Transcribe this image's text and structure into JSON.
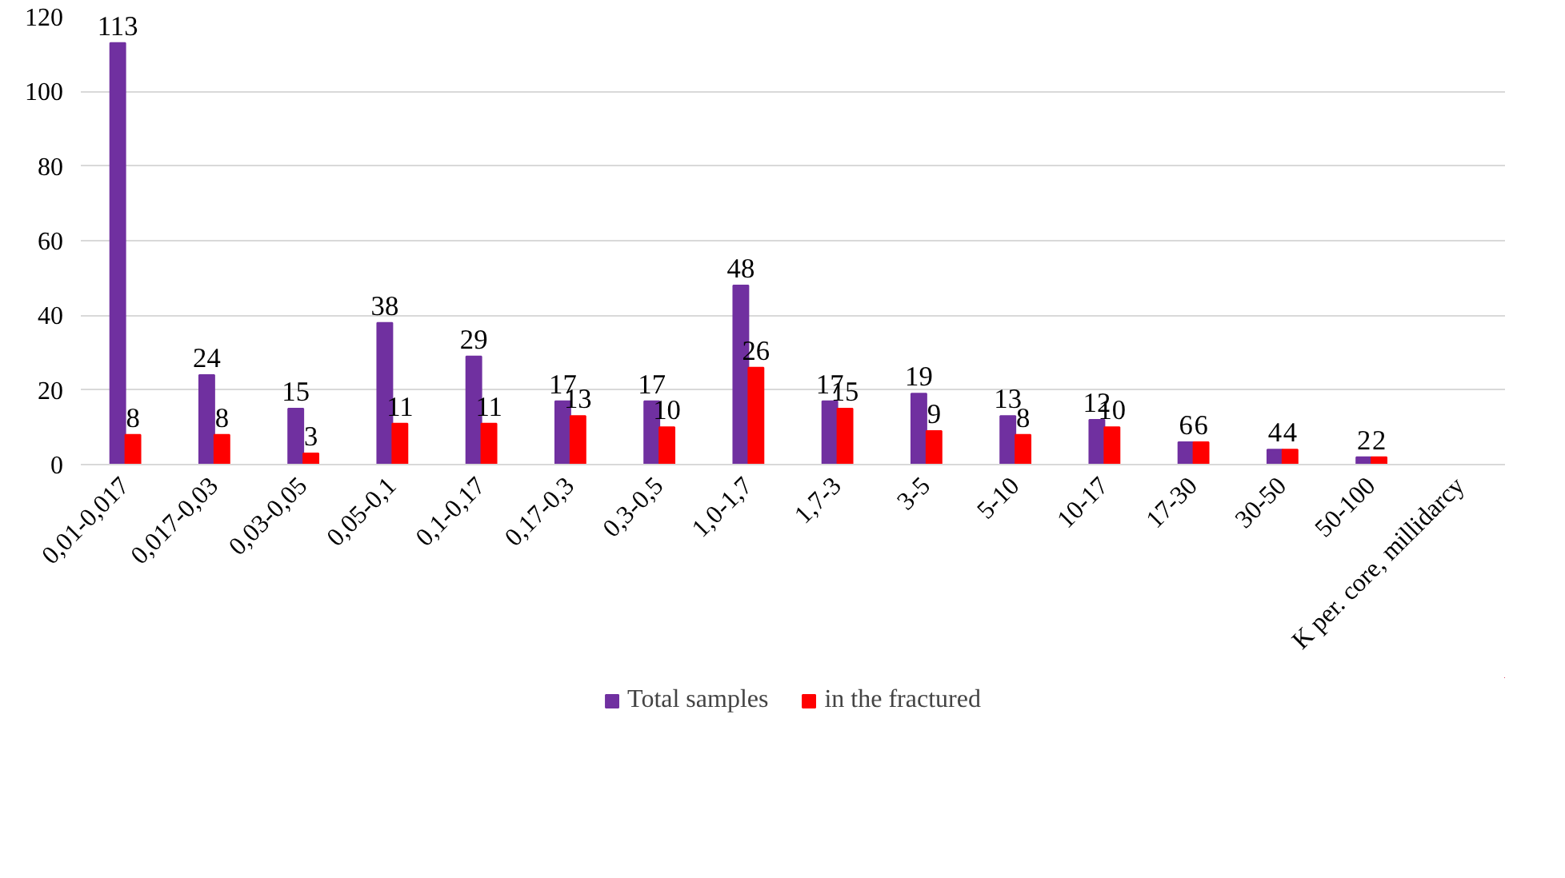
{
  "chart_data": {
    "type": "bar",
    "categories": [
      "0,01-0,017",
      "0,017-0,03",
      "0,03-0,05",
      "0,05-0,1",
      "0,1-0,17",
      "0,17-0,3",
      "0,3-0,5",
      "1,0-1,7",
      "1,7-3",
      "3-5",
      "5-10",
      "10-17",
      "17-30",
      "30-50",
      "50-100",
      "K per. core, millidarcy"
    ],
    "series": [
      {
        "name": "Total samples",
        "color": "#7030a0",
        "values": [
          113,
          24,
          15,
          38,
          29,
          17,
          17,
          48,
          17,
          19,
          13,
          12,
          6,
          4,
          2,
          null
        ]
      },
      {
        "name": "in the fractured",
        "color": "#ff0000",
        "values": [
          8,
          8,
          3,
          11,
          11,
          13,
          10,
          26,
          15,
          9,
          8,
          10,
          6,
          4,
          2,
          null
        ]
      }
    ],
    "ylim": [
      0,
      120
    ],
    "yticks": [
      0,
      20,
      40,
      60,
      80,
      100,
      120
    ],
    "grid": "y",
    "legend": "bottom",
    "data_labels": true
  }
}
